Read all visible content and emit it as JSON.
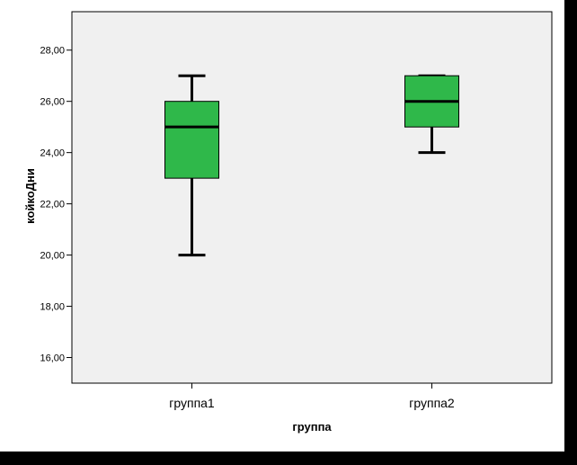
{
  "chart_data": {
    "type": "boxplot",
    "xlabel": "группа",
    "ylabel": "койкоДни",
    "ylim": [
      15.0,
      29.5
    ],
    "yticks": [
      16,
      18,
      20,
      22,
      24,
      26,
      28
    ],
    "ytick_labels": [
      "16,00",
      "18,00",
      "20,00",
      "22,00",
      "24,00",
      "26,00",
      "28,00"
    ],
    "categories": [
      "группа1",
      "группа2"
    ],
    "boxes": [
      {
        "category": "группа1",
        "min": 20,
        "q1": 23,
        "median": 25,
        "q3": 26,
        "max": 27
      },
      {
        "category": "группа2",
        "min": 24,
        "q1": 25,
        "median": 26,
        "q3": 27,
        "max": 27
      }
    ],
    "grid": false,
    "colors": {
      "box_fill": "#2fb84a",
      "plot_background": "#f0f0f0",
      "page_background": "#ffffff",
      "frame": "#000000"
    }
  }
}
